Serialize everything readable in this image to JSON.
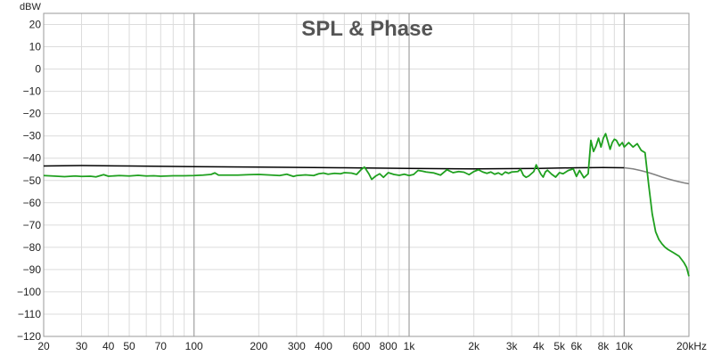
{
  "chart_data": {
    "type": "line",
    "title": "SPL & Phase",
    "ylabel": "dBW",
    "xunit": "Hz",
    "xscale": "log",
    "xlim": [
      20,
      20000
    ],
    "ylim": [
      -120,
      25
    ],
    "grid": true,
    "yticks": [
      20,
      10,
      0,
      -10,
      -20,
      -30,
      -40,
      -50,
      -60,
      -70,
      -80,
      -90,
      -100,
      -110,
      -120
    ],
    "xticks": [
      {
        "v": 20,
        "label": "20"
      },
      {
        "v": 30,
        "label": "30"
      },
      {
        "v": 40,
        "label": "40"
      },
      {
        "v": 50,
        "label": "50"
      },
      {
        "v": 70,
        "label": "70"
      },
      {
        "v": 100,
        "label": "100"
      },
      {
        "v": 200,
        "label": "200"
      },
      {
        "v": 300,
        "label": "300"
      },
      {
        "v": 400,
        "label": "400"
      },
      {
        "v": 600,
        "label": "600"
      },
      {
        "v": 800,
        "label": "800"
      },
      {
        "v": 1000,
        "label": "1k"
      },
      {
        "v": 2000,
        "label": "2k"
      },
      {
        "v": 3000,
        "label": "3k"
      },
      {
        "v": 4000,
        "label": "4k"
      },
      {
        "v": 5000,
        "label": "5k"
      },
      {
        "v": 6000,
        "label": "6k"
      },
      {
        "v": 8000,
        "label": "8k"
      },
      {
        "v": 10000,
        "label": "10k"
      },
      {
        "v": 20000,
        "label": "20kHz"
      }
    ],
    "series": [
      {
        "color": "#000000",
        "points": [
          [
            20,
            -43.5
          ],
          [
            30,
            -43.3
          ],
          [
            50,
            -43.5
          ],
          [
            100,
            -43.8
          ],
          [
            200,
            -44.0
          ],
          [
            500,
            -44.3
          ],
          [
            1000,
            -44.6
          ],
          [
            2000,
            -44.8
          ],
          [
            4000,
            -44.6
          ],
          [
            6000,
            -44.3
          ],
          [
            8000,
            -44.2
          ],
          [
            10000,
            -44.3
          ]
        ]
      },
      {
        "color": "#808080",
        "points": [
          [
            10000,
            -44.3
          ],
          [
            11000,
            -44.8
          ],
          [
            12000,
            -45.6
          ],
          [
            13000,
            -46.5
          ],
          [
            14000,
            -47.5
          ],
          [
            15000,
            -48.5
          ],
          [
            16000,
            -49.3
          ],
          [
            17000,
            -50.0
          ],
          [
            18000,
            -50.6
          ],
          [
            19000,
            -51.1
          ],
          [
            20000,
            -51.5
          ]
        ]
      },
      {
        "color": "#1fa01f",
        "points": [
          [
            20,
            -47.8
          ],
          [
            22,
            -48.0
          ],
          [
            25,
            -48.3
          ],
          [
            28,
            -48.0
          ],
          [
            30,
            -48.2
          ],
          [
            33,
            -48.1
          ],
          [
            35,
            -48.4
          ],
          [
            38,
            -47.4
          ],
          [
            40,
            -48.1
          ],
          [
            45,
            -47.8
          ],
          [
            50,
            -48.0
          ],
          [
            55,
            -47.7
          ],
          [
            60,
            -48.0
          ],
          [
            65,
            -47.9
          ],
          [
            70,
            -48.1
          ],
          [
            80,
            -47.9
          ],
          [
            90,
            -47.9
          ],
          [
            100,
            -47.8
          ],
          [
            110,
            -47.6
          ],
          [
            120,
            -47.3
          ],
          [
            125,
            -46.6
          ],
          [
            130,
            -47.6
          ],
          [
            140,
            -47.6
          ],
          [
            160,
            -47.6
          ],
          [
            180,
            -47.4
          ],
          [
            200,
            -47.3
          ],
          [
            230,
            -47.6
          ],
          [
            250,
            -47.8
          ],
          [
            270,
            -47.2
          ],
          [
            290,
            -48.2
          ],
          [
            300,
            -47.8
          ],
          [
            330,
            -47.5
          ],
          [
            360,
            -47.8
          ],
          [
            380,
            -47.0
          ],
          [
            400,
            -46.7
          ],
          [
            420,
            -47.2
          ],
          [
            450,
            -46.8
          ],
          [
            480,
            -47.0
          ],
          [
            500,
            -46.5
          ],
          [
            540,
            -46.7
          ],
          [
            570,
            -47.3
          ],
          [
            600,
            -45.0
          ],
          [
            620,
            -44.0
          ],
          [
            650,
            -47.0
          ],
          [
            670,
            -49.5
          ],
          [
            700,
            -48.0
          ],
          [
            730,
            -47.0
          ],
          [
            760,
            -48.6
          ],
          [
            800,
            -46.5
          ],
          [
            850,
            -47.3
          ],
          [
            900,
            -47.7
          ],
          [
            950,
            -47.2
          ],
          [
            1000,
            -47.8
          ],
          [
            1050,
            -47.3
          ],
          [
            1100,
            -45.5
          ],
          [
            1150,
            -45.8
          ],
          [
            1200,
            -46.2
          ],
          [
            1300,
            -46.6
          ],
          [
            1400,
            -47.6
          ],
          [
            1500,
            -45.2
          ],
          [
            1600,
            -46.5
          ],
          [
            1700,
            -46.0
          ],
          [
            1800,
            -46.3
          ],
          [
            1900,
            -47.4
          ],
          [
            2000,
            -46.0
          ],
          [
            2100,
            -45.2
          ],
          [
            2200,
            -46.2
          ],
          [
            2300,
            -46.8
          ],
          [
            2400,
            -46.2
          ],
          [
            2500,
            -47.2
          ],
          [
            2600,
            -46.6
          ],
          [
            2700,
            -47.5
          ],
          [
            2800,
            -46.2
          ],
          [
            2900,
            -46.8
          ],
          [
            3000,
            -46.2
          ],
          [
            3200,
            -46.0
          ],
          [
            3300,
            -45.0
          ],
          [
            3400,
            -47.7
          ],
          [
            3500,
            -48.6
          ],
          [
            3600,
            -48.0
          ],
          [
            3800,
            -46.0
          ],
          [
            3900,
            -43.0
          ],
          [
            4000,
            -45.2
          ],
          [
            4100,
            -47.2
          ],
          [
            4200,
            -48.5
          ],
          [
            4300,
            -46.2
          ],
          [
            4400,
            -45.4
          ],
          [
            4600,
            -47.2
          ],
          [
            4800,
            -48.5
          ],
          [
            5000,
            -46.5
          ],
          [
            5200,
            -47.0
          ],
          [
            5500,
            -45.5
          ],
          [
            5800,
            -44.8
          ],
          [
            6000,
            -48.2
          ],
          [
            6200,
            -45.5
          ],
          [
            6500,
            -48.8
          ],
          [
            6800,
            -47.0
          ],
          [
            7000,
            -32.0
          ],
          [
            7200,
            -37.0
          ],
          [
            7400,
            -34.5
          ],
          [
            7600,
            -31.0
          ],
          [
            7800,
            -35.0
          ],
          [
            8000,
            -31.0
          ],
          [
            8200,
            -29.0
          ],
          [
            8400,
            -32.5
          ],
          [
            8600,
            -36.0
          ],
          [
            8800,
            -33.0
          ],
          [
            9000,
            -31.5
          ],
          [
            9200,
            -32.0
          ],
          [
            9500,
            -34.5
          ],
          [
            9800,
            -33.0
          ],
          [
            10000,
            -35.0
          ],
          [
            10500,
            -33.0
          ],
          [
            11000,
            -35.0
          ],
          [
            11500,
            -33.5
          ],
          [
            12000,
            -36.5
          ],
          [
            12500,
            -37.5
          ],
          [
            13000,
            -52.0
          ],
          [
            13500,
            -65.0
          ],
          [
            14000,
            -73.0
          ],
          [
            14500,
            -76.5
          ],
          [
            15000,
            -78.5
          ],
          [
            15500,
            -80.0
          ],
          [
            16000,
            -81.0
          ],
          [
            17000,
            -82.5
          ],
          [
            18000,
            -84.0
          ],
          [
            18500,
            -85.5
          ],
          [
            19000,
            -87.0
          ],
          [
            19500,
            -89.0
          ],
          [
            20000,
            -93.0
          ]
        ]
      }
    ]
  }
}
